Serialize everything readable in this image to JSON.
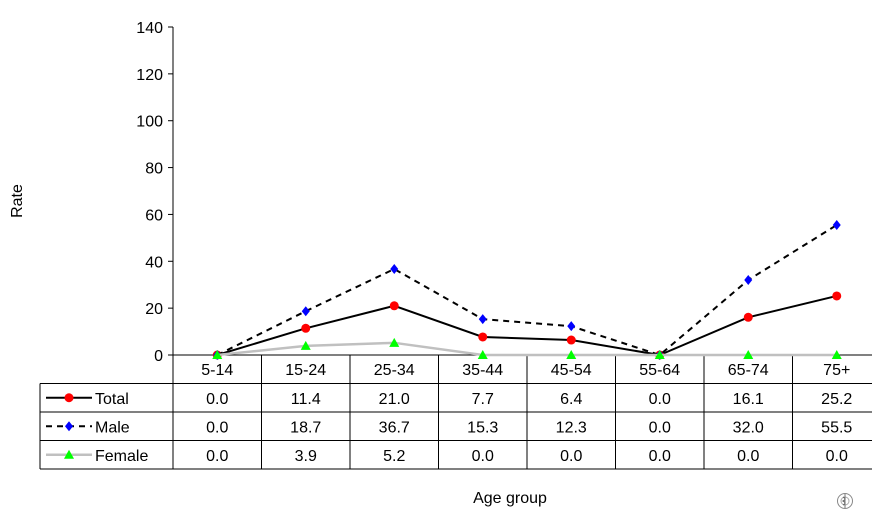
{
  "chart_data": {
    "type": "line",
    "categories": [
      "5-14",
      "15-24",
      "25-34",
      "35-44",
      "45-54",
      "55-64",
      "65-74",
      "75+"
    ],
    "series": [
      {
        "name": "Total",
        "values": [
          0.0,
          11.4,
          21.0,
          7.7,
          6.4,
          0.0,
          16.1,
          25.2
        ],
        "display": [
          "0.0",
          "11.4",
          "21.0",
          "7.7",
          "6.4",
          "0.0",
          "16.1",
          "25.2"
        ],
        "color": "#000000",
        "marker_color": "#ff0000",
        "marker": "circle",
        "line_style": "solid"
      },
      {
        "name": "Male",
        "values": [
          0.0,
          18.7,
          36.7,
          15.3,
          12.3,
          0.0,
          32.0,
          55.5
        ],
        "display": [
          "0.0",
          "18.7",
          "36.7",
          "15.3",
          "12.3",
          "0.0",
          "32.0",
          "55.5"
        ],
        "color": "#000000",
        "marker_color": "#0000ff",
        "marker": "diamond",
        "line_style": "dashed"
      },
      {
        "name": "Female",
        "values": [
          0.0,
          3.9,
          5.2,
          0.0,
          0.0,
          0.0,
          0.0,
          0.0
        ],
        "display": [
          "0.0",
          "3.9",
          "5.2",
          "0.0",
          "0.0",
          "0.0",
          "0.0",
          "0.0"
        ],
        "color": "#c0c0c0",
        "marker_color": "#00ff00",
        "marker": "triangle",
        "line_style": "solid"
      }
    ],
    "y_ticks": [
      "0",
      "20",
      "40",
      "60",
      "80",
      "100",
      "120",
      "140"
    ],
    "ylim": [
      0,
      140
    ],
    "xlabel": "Age group",
    "ylabel": "Rate",
    "grid": false,
    "legend": "data-table"
  },
  "logo_icon": "who-emblem-icon"
}
